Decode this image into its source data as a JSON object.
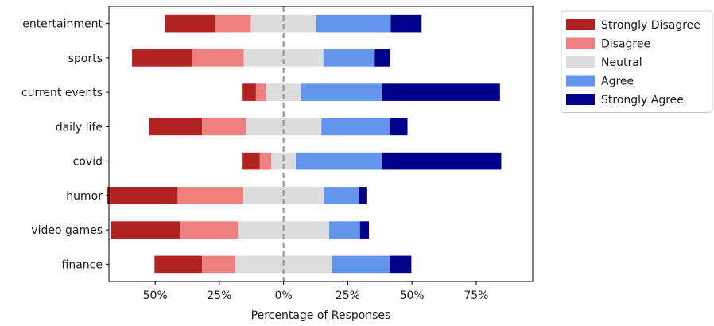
{
  "chart_data": {
    "type": "bar",
    "orientation": "horizontal",
    "stacked": "diverging",
    "xlabel": "Percentage of Responses",
    "ylabel": "",
    "xlim": [
      -68,
      97
    ],
    "xticks": [
      -50,
      -25,
      0,
      25,
      50,
      75
    ],
    "xtick_labels": [
      "50%",
      "25%",
      "0%",
      "25%",
      "50%",
      "75%"
    ],
    "center_line": 0,
    "grid": false,
    "legend_position": "outside-top-right",
    "categories": [
      "entertainment",
      "sports",
      "current events",
      "daily life",
      "covid",
      "humor",
      "video games",
      "finance"
    ],
    "series": [
      {
        "name": "Strongly Disagree",
        "color": "#b22222",
        "values": [
          19.5,
          23.5,
          5.5,
          20.5,
          7.0,
          27.5,
          27.0,
          18.5
        ]
      },
      {
        "name": "Disagree",
        "color": "#f08080",
        "values": [
          14.0,
          20.0,
          4.0,
          17.0,
          4.5,
          25.5,
          22.5,
          13.0
        ]
      },
      {
        "name": "Neutral",
        "color": "#dcdcdc",
        "values": [
          25.5,
          31.0,
          13.5,
          29.5,
          9.5,
          31.5,
          35.5,
          37.5
        ]
      },
      {
        "name": "Agree",
        "color": "#6495ed",
        "values": [
          29.0,
          20.0,
          31.5,
          26.5,
          33.5,
          13.5,
          12.0,
          22.5
        ]
      },
      {
        "name": "Strongly Agree",
        "color": "#00008b",
        "values": [
          12.0,
          6.0,
          46.0,
          7.0,
          46.5,
          3.0,
          3.5,
          8.5
        ]
      }
    ]
  }
}
